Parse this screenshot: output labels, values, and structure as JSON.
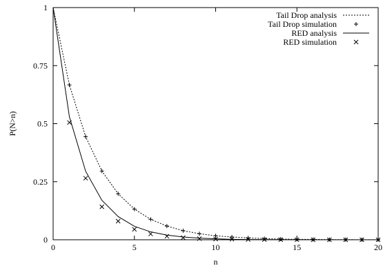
{
  "chart_data": {
    "type": "line",
    "title": "",
    "xlabel": "n",
    "ylabel": "P(N>n)",
    "xlim": [
      0,
      20
    ],
    "ylim": [
      0,
      1
    ],
    "xticks": [
      0,
      5,
      10,
      15,
      20
    ],
    "xtick_labels": [
      "0",
      "5",
      "10",
      "15",
      "20"
    ],
    "yticks": [
      0,
      0.25,
      0.5,
      0.75,
      1
    ],
    "ytick_labels": [
      "0",
      "0.25",
      "0.5",
      "0.75",
      "1"
    ],
    "grid": false,
    "legend": "top-right",
    "series": [
      {
        "name": "Tail Drop analysis",
        "style": "dotted-line",
        "x": [
          0,
          1,
          2,
          3,
          4,
          5,
          6,
          7,
          8,
          9,
          10,
          11,
          12,
          13,
          14,
          15,
          16,
          17,
          18,
          19,
          20
        ],
        "values": [
          1.0,
          0.667,
          0.444,
          0.296,
          0.198,
          0.132,
          0.088,
          0.059,
          0.039,
          0.026,
          0.017,
          0.012,
          0.008,
          0.005,
          0.003,
          0.002,
          0.0015,
          0.001,
          0.0007,
          0.0004,
          0.0003
        ]
      },
      {
        "name": "Tail Drop simulation",
        "style": "plus-marker",
        "x": [
          1,
          2,
          3,
          4,
          5,
          6,
          7,
          8,
          9,
          10,
          11,
          12,
          13,
          14,
          15,
          16,
          17,
          18,
          19,
          20
        ],
        "values": [
          0.667,
          0.444,
          0.296,
          0.198,
          0.132,
          0.088,
          0.059,
          0.039,
          0.026,
          0.017,
          0.012,
          0.008,
          0.005,
          0.003,
          0.002,
          0.0015,
          0.001,
          0.0007,
          0.0004,
          0.0003
        ]
      },
      {
        "name": "RED analysis",
        "style": "solid-line",
        "x": [
          0,
          1,
          2,
          3,
          4,
          5,
          6,
          7,
          8,
          9,
          10,
          11,
          12,
          13,
          14,
          15,
          16,
          17,
          18,
          19,
          20
        ],
        "values": [
          1.0,
          0.53,
          0.295,
          0.17,
          0.1,
          0.058,
          0.034,
          0.02,
          0.012,
          0.007,
          0.004,
          0.002,
          0.0012,
          0.0007,
          0.0004,
          0.0002,
          0.0001,
          7e-05,
          4e-05,
          2e-05,
          1e-05
        ]
      },
      {
        "name": "RED simulation",
        "style": "x-marker",
        "x": [
          1,
          2,
          3,
          4,
          5,
          6,
          7,
          8,
          9,
          10,
          11,
          12,
          13,
          14,
          15,
          16,
          17,
          18,
          19,
          20
        ],
        "values": [
          0.505,
          0.265,
          0.142,
          0.08,
          0.045,
          0.025,
          0.015,
          0.009,
          0.005,
          0.003,
          0.002,
          0.001,
          0.0007,
          0.0004,
          0.0002,
          0.0001,
          0.0001,
          5e-05,
          3e-05,
          2e-05
        ]
      }
    ]
  }
}
